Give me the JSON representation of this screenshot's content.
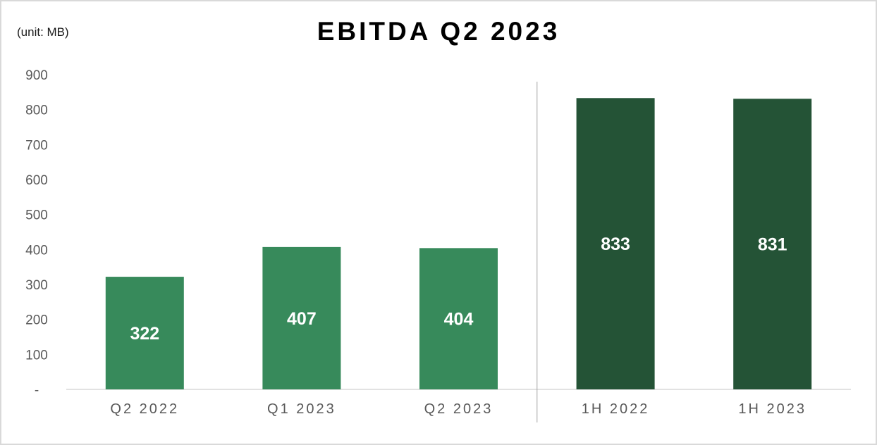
{
  "chart_data": {
    "type": "bar",
    "title": "EBITDA Q2 2023",
    "unit_note": "(unit: MB)",
    "categories": [
      "Q2 2022",
      "Q1 2023",
      "Q2 2023",
      "1H 2022",
      "1H 2023"
    ],
    "values": [
      322,
      407,
      404,
      833,
      831
    ],
    "value_labels": [
      "322",
      "407",
      "404",
      "833",
      "831"
    ],
    "y_ticks": [
      "-",
      "100",
      "200",
      "300",
      "400",
      "500",
      "600",
      "700",
      "800",
      "900"
    ],
    "ylim": [
      0,
      900
    ],
    "grid": false,
    "legend": "none",
    "colors": {
      "quarter": "#378a5b",
      "half_year": "#245336",
      "baseline": "#d9d9d9",
      "separator": "#a6a6a6"
    },
    "separator_after_index": 2
  }
}
